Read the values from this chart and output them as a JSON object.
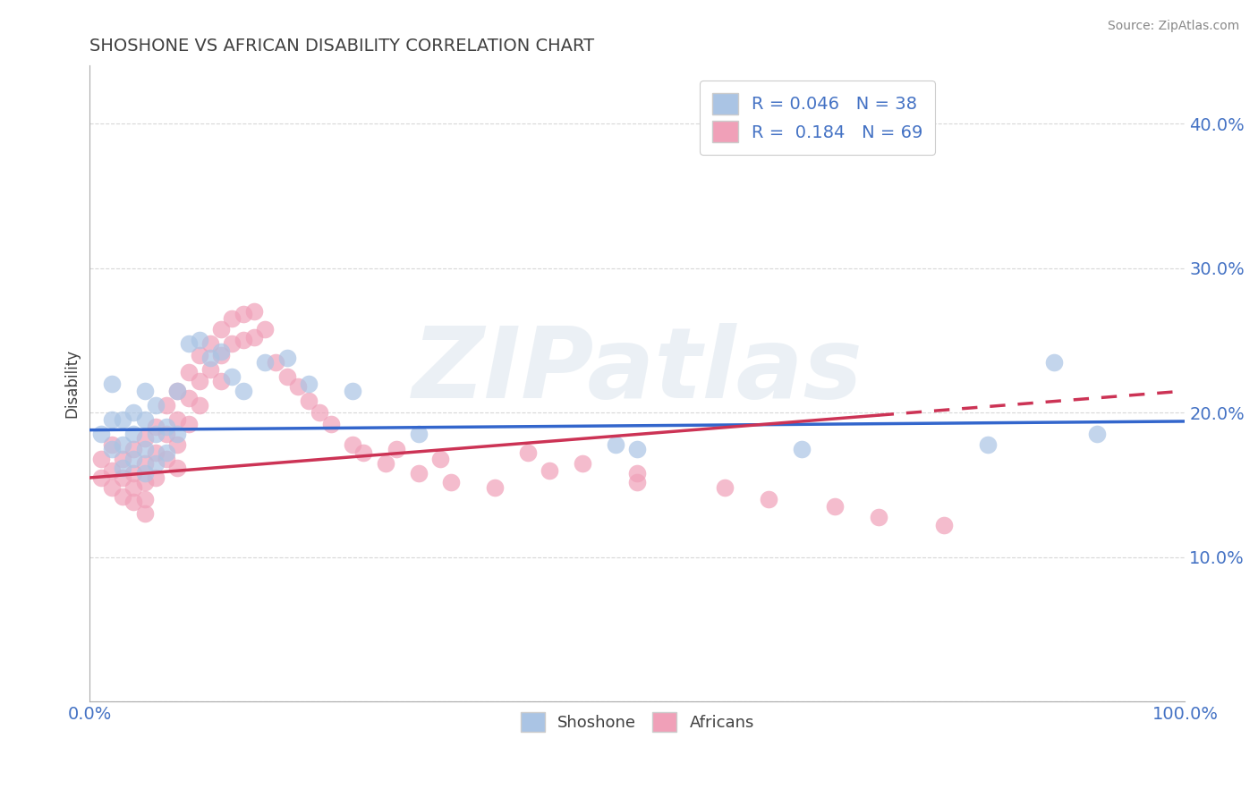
{
  "title": "SHOSHONE VS AFRICAN DISABILITY CORRELATION CHART",
  "source": "Source: ZipAtlas.com",
  "ylabel": "Disability",
  "y_ticks": [
    0.0,
    0.1,
    0.2,
    0.3,
    0.4
  ],
  "y_tick_labels": [
    "",
    "10.0%",
    "20.0%",
    "30.0%",
    "40.0%"
  ],
  "x_lim": [
    0.0,
    1.0
  ],
  "y_lim": [
    0.0,
    0.44
  ],
  "shoshone_color": "#aac4e4",
  "africans_color": "#f0a0b8",
  "shoshone_line_color": "#3366cc",
  "africans_line_color": "#cc3355",
  "R_shoshone": 0.046,
  "N_shoshone": 38,
  "R_africans": 0.184,
  "N_africans": 69,
  "shoshone_x": [
    0.01,
    0.02,
    0.02,
    0.02,
    0.03,
    0.03,
    0.03,
    0.04,
    0.04,
    0.04,
    0.05,
    0.05,
    0.05,
    0.05,
    0.06,
    0.06,
    0.06,
    0.07,
    0.07,
    0.08,
    0.08,
    0.09,
    0.1,
    0.11,
    0.12,
    0.13,
    0.14,
    0.16,
    0.18,
    0.2,
    0.24,
    0.3,
    0.48,
    0.5,
    0.65,
    0.82,
    0.88,
    0.92
  ],
  "shoshone_y": [
    0.185,
    0.22,
    0.195,
    0.175,
    0.195,
    0.178,
    0.162,
    0.2,
    0.185,
    0.168,
    0.215,
    0.195,
    0.175,
    0.158,
    0.205,
    0.185,
    0.165,
    0.19,
    0.172,
    0.215,
    0.185,
    0.248,
    0.25,
    0.238,
    0.242,
    0.225,
    0.215,
    0.235,
    0.238,
    0.22,
    0.215,
    0.185,
    0.178,
    0.175,
    0.175,
    0.178,
    0.235,
    0.185
  ],
  "africans_x": [
    0.01,
    0.01,
    0.02,
    0.02,
    0.02,
    0.03,
    0.03,
    0.03,
    0.04,
    0.04,
    0.04,
    0.04,
    0.05,
    0.05,
    0.05,
    0.05,
    0.05,
    0.06,
    0.06,
    0.06,
    0.07,
    0.07,
    0.07,
    0.08,
    0.08,
    0.08,
    0.08,
    0.09,
    0.09,
    0.09,
    0.1,
    0.1,
    0.1,
    0.11,
    0.11,
    0.12,
    0.12,
    0.12,
    0.13,
    0.13,
    0.14,
    0.14,
    0.15,
    0.15,
    0.16,
    0.17,
    0.18,
    0.19,
    0.2,
    0.21,
    0.22,
    0.24,
    0.25,
    0.27,
    0.3,
    0.33,
    0.37,
    0.4,
    0.45,
    0.5,
    0.28,
    0.32,
    0.42,
    0.5,
    0.58,
    0.62,
    0.68,
    0.72,
    0.78
  ],
  "africans_y": [
    0.168,
    0.155,
    0.178,
    0.16,
    0.148,
    0.168,
    0.155,
    0.142,
    0.175,
    0.158,
    0.148,
    0.138,
    0.182,
    0.165,
    0.152,
    0.14,
    0.13,
    0.19,
    0.172,
    0.155,
    0.205,
    0.185,
    0.168,
    0.215,
    0.195,
    0.178,
    0.162,
    0.228,
    0.21,
    0.192,
    0.24,
    0.222,
    0.205,
    0.248,
    0.23,
    0.258,
    0.24,
    0.222,
    0.265,
    0.248,
    0.268,
    0.25,
    0.27,
    0.252,
    0.258,
    0.235,
    0.225,
    0.218,
    0.208,
    0.2,
    0.192,
    0.178,
    0.172,
    0.165,
    0.158,
    0.152,
    0.148,
    0.172,
    0.165,
    0.158,
    0.175,
    0.168,
    0.16,
    0.152,
    0.148,
    0.14,
    0.135,
    0.128,
    0.122
  ],
  "watermark_text": "ZIPatlas",
  "background_color": "#ffffff",
  "grid_color": "#d8d8d8",
  "title_color": "#404040",
  "axis_tick_color": "#4472c4",
  "legend_label_color": "#4472c4"
}
